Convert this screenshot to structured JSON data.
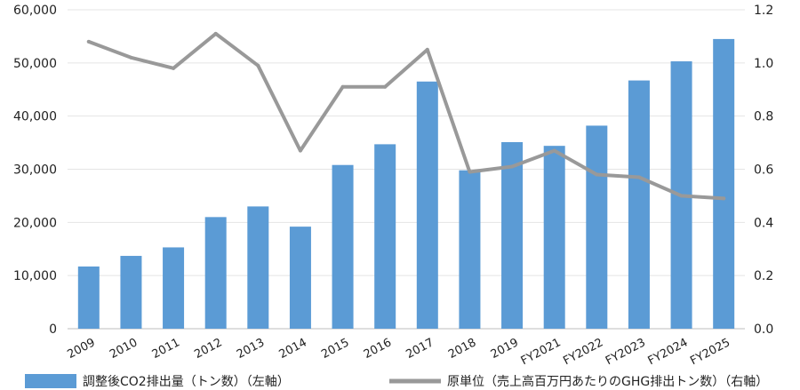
{
  "chart_data": {
    "type": "bar",
    "categories": [
      "2009",
      "2010",
      "2011",
      "2012",
      "2013",
      "2014",
      "2015",
      "2016",
      "2017",
      "2018",
      "2019",
      "FY2021",
      "FY2022",
      "FY2023",
      "FY2024",
      "FY2025"
    ],
    "series": [
      {
        "name": "調整後CO2排出量（トン数）（左軸）",
        "type": "bar",
        "axis": "left",
        "color": "#5b9bd5",
        "values": [
          11700,
          13700,
          15300,
          21000,
          23000,
          19200,
          30800,
          34700,
          46500,
          29800,
          35100,
          34400,
          38200,
          46700,
          50300,
          54500
        ]
      },
      {
        "name": "原単位（売上高百万円あたりのGHG排出トン数）（右軸）",
        "type": "line",
        "axis": "right",
        "color": "#999999",
        "values": [
          1.08,
          1.02,
          0.98,
          1.11,
          0.99,
          0.67,
          0.91,
          0.91,
          1.05,
          0.59,
          0.61,
          0.67,
          0.58,
          0.57,
          0.5,
          0.49
        ]
      }
    ],
    "y_left": {
      "ylim": [
        0,
        60000
      ],
      "ticks": [
        0,
        10000,
        20000,
        30000,
        40000,
        50000,
        60000
      ],
      "tick_labels": [
        "0",
        "10,000",
        "20,000",
        "30,000",
        "40,000",
        "50,000",
        "60,000"
      ]
    },
    "y_right": {
      "ylim": [
        0,
        1.2
      ],
      "ticks": [
        0,
        0.2,
        0.4,
        0.6,
        0.8,
        1.0,
        1.2
      ],
      "tick_labels": [
        "0.0",
        "0.2",
        "0.4",
        "0.6",
        "0.8",
        "1.0",
        "1.2"
      ]
    },
    "grid": true,
    "legend_position": "bottom",
    "title": "",
    "xlabel": "",
    "ylabel": ""
  }
}
